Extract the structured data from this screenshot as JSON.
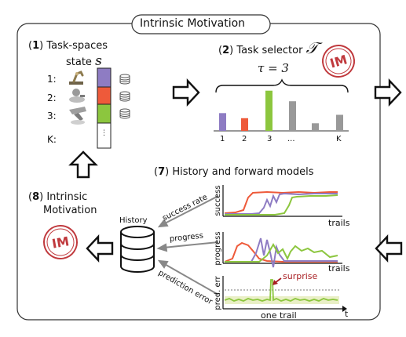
{
  "title": "Intrinsic Motivation",
  "panel1": {
    "num": "1",
    "title": "Task-spaces",
    "state_label": "state",
    "state_symbol": "s",
    "rows": [
      "1:",
      "2:",
      "3:",
      "K:"
    ],
    "colors": [
      "#8e7cc3",
      "#ee5a3a",
      "#8cc63e"
    ]
  },
  "panel2": {
    "num": "2",
    "title": "Task selector",
    "symbol": "𝒯",
    "tau": "τ = 3",
    "x_labels": [
      "1",
      "2",
      "3",
      "...",
      "K"
    ],
    "bars": [
      {
        "value": 0.42,
        "color": "#8e7cc3"
      },
      {
        "value": 0.3,
        "color": "#ee5a3a"
      },
      {
        "value": 0.95,
        "color": "#8cc63e"
      },
      {
        "value": 0.7,
        "color": "#999999"
      },
      {
        "value": 0.18,
        "color": "#999999"
      },
      {
        "value": 0.38,
        "color": "#999999"
      }
    ]
  },
  "stamp": "IM",
  "panel7": {
    "num": "7",
    "title": "History and forward models",
    "history": "History",
    "arrows": [
      "success rate",
      "progress",
      "prediction error"
    ],
    "success_ylabel": "success",
    "success_xlabel": "trails",
    "progress_ylabel": "progress",
    "progress_xlabel": "trails",
    "error_ylabel": "pred. err",
    "error_xlabel": "one trail",
    "t_label": "t",
    "surprise": "surprise"
  },
  "panel8": {
    "num": "8",
    "line1": "Intrinsic",
    "line2": "Motivation"
  },
  "series_colors": {
    "red": "#ee5a3a",
    "purple": "#8e7cc3",
    "green": "#8cc63e",
    "surprise_text": "#a81e22",
    "stamp": "#c0393d"
  }
}
